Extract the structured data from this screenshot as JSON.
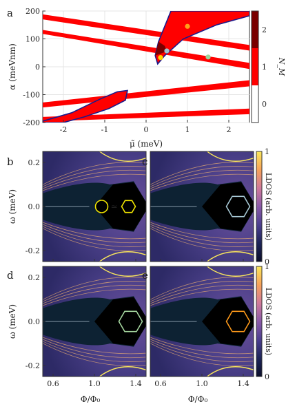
{
  "chart_data": [
    {
      "panel": "a",
      "type": "heatmap",
      "xlabel": "μ̃ (meV)",
      "ylabel": "α (meVnm)",
      "xlim": [
        -2.5,
        2.5
      ],
      "ylim": [
        -200,
        200
      ],
      "xticks": [
        "-2",
        "-1",
        "0",
        "1",
        "2"
      ],
      "xtick_values": [
        -2,
        -1,
        0,
        1,
        2
      ],
      "yticks": [
        "-200",
        "-100",
        "0",
        "100",
        "200"
      ],
      "ytick_values": [
        -200,
        -100,
        0,
        100,
        200
      ],
      "grid": true,
      "colorbar": {
        "label": "N_M",
        "ticks": [
          "0",
          "1",
          "2"
        ],
        "tick_values": [
          0,
          1,
          2
        ],
        "colors": {
          "0": "#ffffff",
          "1": "#ff0000",
          "2": "#7a0000"
        }
      },
      "bands": [
        {
          "x1": -2.5,
          "y1a": 188,
          "y1b": 170,
          "x2": 2.5,
          "y2a": 78,
          "y2b": 58
        },
        {
          "x1": -2.5,
          "y1a": 132,
          "y1b": 118,
          "x2": 2.5,
          "y2a": 14,
          "y2b": -8
        },
        {
          "x1": -2.5,
          "y1a": -128,
          "y1b": -146,
          "x2": 2.5,
          "y2a": -48,
          "y2b": -70
        },
        {
          "x1": -2.5,
          "y1a": -180,
          "y1b": -196,
          "x2": 2.5,
          "y2a": -150,
          "y2b": -170
        }
      ],
      "region_boundary": [
        [
          [
            0.22,
            40
          ],
          [
            0.28,
            10
          ],
          [
            0.45,
            40
          ],
          [
            0.9,
            100
          ],
          [
            1.7,
            150
          ],
          [
            2.5,
            183
          ],
          [
            2.5,
            200
          ],
          [
            0.6,
            200
          ],
          [
            0.3,
            90
          ]
        ],
        [
          [
            -0.45,
            -85
          ],
          [
            -0.5,
            -120
          ],
          [
            -0.9,
            -150
          ],
          [
            -1.5,
            -180
          ],
          [
            -2.0,
            -200
          ],
          [
            -2.5,
            -200
          ],
          [
            -2.5,
            -195
          ],
          [
            -1.8,
            -165
          ],
          [
            -1.1,
            -115
          ],
          [
            -0.7,
            -90
          ]
        ]
      ],
      "points": [
        {
          "x": 0.35,
          "y": 33,
          "color": "#ffd400"
        },
        {
          "x": 0.5,
          "y": 57,
          "color": "#9ec3cf"
        },
        {
          "x": 1.5,
          "y": 35,
          "color": "#9cd39a"
        },
        {
          "x": 1.0,
          "y": 145,
          "color": "#ff9f1a"
        }
      ]
    },
    {
      "panel": "b",
      "type": "heatmap",
      "xlabel": "",
      "ylabel": "ω (meV)",
      "xlim": [
        0.5,
        1.5
      ],
      "ylim": [
        -0.25,
        0.25
      ],
      "yticks": [
        "-0.2",
        "0.0",
        "0.2"
      ],
      "ytick_values": [
        -0.2,
        0.0,
        0.2
      ],
      "inset": {
        "shape": "circle-hexagon",
        "symbol": "≃",
        "color": "#f2e600"
      }
    },
    {
      "panel": "c",
      "type": "heatmap",
      "xlabel": "",
      "ylabel": "",
      "xlim": [
        0.5,
        1.5
      ],
      "ylim": [
        -0.25,
        0.25
      ],
      "inset": {
        "shape": "hexagon",
        "color": "#a8cad6"
      }
    },
    {
      "panel": "d",
      "type": "heatmap",
      "xlabel": "Φ/Φ₀",
      "ylabel": "ω (meV)",
      "xlim": [
        0.5,
        1.5
      ],
      "ylim": [
        -0.25,
        0.25
      ],
      "xticks": [
        "0.6",
        "1.0",
        "1.4"
      ],
      "xtick_values": [
        0.6,
        1.0,
        1.4
      ],
      "yticks": [
        "-0.2",
        "0.0",
        "0.2"
      ],
      "ytick_values": [
        -0.2,
        0.0,
        0.2
      ],
      "inset": {
        "shape": "hexagon",
        "color": "#a6d8a0"
      }
    },
    {
      "panel": "e",
      "type": "heatmap",
      "xlabel": "Φ/Φ₀",
      "ylabel": "",
      "xlim": [
        0.5,
        1.5
      ],
      "ylim": [
        -0.25,
        0.25
      ],
      "xticks": [
        "0.6",
        "1.0",
        "1.4"
      ],
      "xtick_values": [
        0.6,
        1.0,
        1.4
      ],
      "inset": {
        "shape": "hexagon",
        "color": "#ff9a1a"
      }
    }
  ],
  "colorbars": [
    {
      "label": "LDOS (arb. units)",
      "ticks": [
        "0",
        "1"
      ],
      "tick_values": [
        0,
        1
      ]
    },
    {
      "label": "LDOS (arb. units)",
      "ticks": [
        "0",
        "1"
      ],
      "tick_values": [
        0,
        1
      ]
    }
  ],
  "colors": {
    "red": "#ff0000",
    "darkred": "#7a0000",
    "navy": "#1a1a8c",
    "cmap": [
      "#0b0e2a",
      "#1d2458",
      "#4b3f8f",
      "#8a5aa8",
      "#d07a9b",
      "#f7a25a",
      "#fbe85a"
    ]
  }
}
